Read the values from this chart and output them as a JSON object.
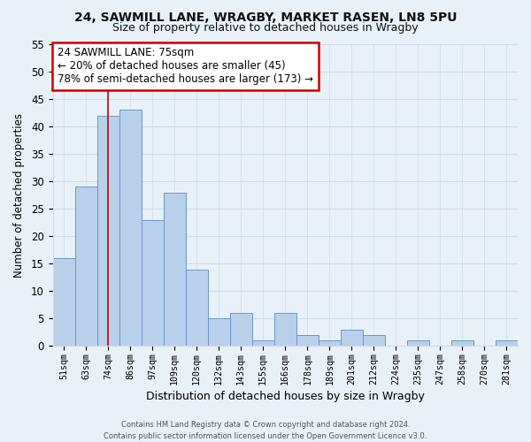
{
  "title1": "24, SAWMILL LANE, WRAGBY, MARKET RASEN, LN8 5PU",
  "title2": "Size of property relative to detached houses in Wragby",
  "xlabel": "Distribution of detached houses by size in Wragby",
  "ylabel": "Number of detached properties",
  "bar_labels": [
    "51sqm",
    "63sqm",
    "74sqm",
    "86sqm",
    "97sqm",
    "109sqm",
    "120sqm",
    "132sqm",
    "143sqm",
    "155sqm",
    "166sqm",
    "178sqm",
    "189sqm",
    "201sqm",
    "212sqm",
    "224sqm",
    "235sqm",
    "247sqm",
    "258sqm",
    "270sqm",
    "281sqm"
  ],
  "bar_values": [
    16,
    29,
    42,
    43,
    23,
    28,
    14,
    5,
    6,
    1,
    6,
    2,
    1,
    3,
    2,
    0,
    1,
    0,
    1,
    0,
    1
  ],
  "bar_color": "#b8d0ea",
  "bar_edge_color": "#6699cc",
  "vline_x_idx": 2,
  "vline_color": "#cc0000",
  "ylim": [
    0,
    55
  ],
  "yticks": [
    0,
    5,
    10,
    15,
    20,
    25,
    30,
    35,
    40,
    45,
    50,
    55
  ],
  "annotation_title": "24 SAWMILL LANE: 75sqm",
  "annotation_line1": "← 20% of detached houses are smaller (45)",
  "annotation_line2": "78% of semi-detached houses are larger (173) →",
  "footnote1": "Contains HM Land Registry data © Crown copyright and database right 2024.",
  "footnote2": "Contains public sector information licensed under the Open Government Licence v3.0.",
  "grid_color": "#d0dce8",
  "background_color": "#e8f0f8"
}
